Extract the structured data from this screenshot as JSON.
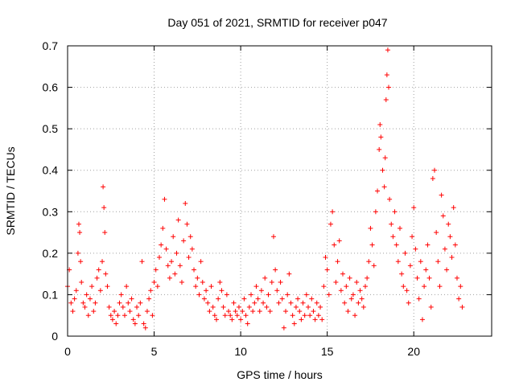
{
  "chart_data": {
    "type": "scatter",
    "title": "Day 051 of 2021, SRMTID for receiver p047",
    "xlabel": "GPS time / hours",
    "ylabel": "SRMTID / TECUs",
    "xlim": [
      0,
      24.5
    ],
    "ylim": [
      0,
      0.7
    ],
    "grid": true,
    "x_ticks": [
      0,
      5,
      10,
      15,
      20
    ],
    "x_tick_labels": [
      "0",
      "5",
      "10",
      "15",
      "20"
    ],
    "y_ticks": [
      0,
      0.1,
      0.2,
      0.3,
      0.4,
      0.5,
      0.6,
      0.7
    ],
    "y_tick_labels": [
      "0",
      "0.1",
      "0.2",
      "0.3",
      "0.4",
      "0.5",
      "0.6",
      "0.7"
    ],
    "marker": "+",
    "marker_color": "#ff0000",
    "series": [
      {
        "name": "SRMTID",
        "points": [
          [
            0.0,
            0.12
          ],
          [
            0.1,
            0.16
          ],
          [
            0.2,
            0.08
          ],
          [
            0.3,
            0.06
          ],
          [
            0.4,
            0.09
          ],
          [
            0.5,
            0.11
          ],
          [
            0.6,
            0.2
          ],
          [
            0.65,
            0.27
          ],
          [
            0.7,
            0.25
          ],
          [
            0.75,
            0.18
          ],
          [
            0.8,
            0.13
          ],
          [
            0.9,
            0.08
          ],
          [
            1.0,
            0.07
          ],
          [
            1.1,
            0.1
          ],
          [
            1.2,
            0.05
          ],
          [
            1.3,
            0.09
          ],
          [
            1.4,
            0.12
          ],
          [
            1.5,
            0.06
          ],
          [
            1.6,
            0.08
          ],
          [
            1.7,
            0.14
          ],
          [
            1.8,
            0.16
          ],
          [
            1.9,
            0.11
          ],
          [
            2.0,
            0.18
          ],
          [
            2.05,
            0.36
          ],
          [
            2.1,
            0.31
          ],
          [
            2.15,
            0.25
          ],
          [
            2.2,
            0.15
          ],
          [
            2.3,
            0.12
          ],
          [
            2.4,
            0.07
          ],
          [
            2.5,
            0.05
          ],
          [
            2.6,
            0.04
          ],
          [
            2.7,
            0.06
          ],
          [
            2.8,
            0.03
          ],
          [
            2.9,
            0.05
          ],
          [
            3.0,
            0.08
          ],
          [
            3.1,
            0.1
          ],
          [
            3.2,
            0.07
          ],
          [
            3.3,
            0.05
          ],
          [
            3.4,
            0.12
          ],
          [
            3.5,
            0.08
          ],
          [
            3.6,
            0.06
          ],
          [
            3.7,
            0.09
          ],
          [
            3.8,
            0.04
          ],
          [
            3.9,
            0.03
          ],
          [
            4.0,
            0.07
          ],
          [
            4.1,
            0.05
          ],
          [
            4.2,
            0.08
          ],
          [
            4.3,
            0.18
          ],
          [
            4.4,
            0.03
          ],
          [
            4.5,
            0.02
          ],
          [
            4.6,
            0.06
          ],
          [
            4.7,
            0.09
          ],
          [
            4.8,
            0.11
          ],
          [
            4.9,
            0.05
          ],
          [
            5.0,
            0.13
          ],
          [
            5.1,
            0.16
          ],
          [
            5.2,
            0.12
          ],
          [
            5.3,
            0.19
          ],
          [
            5.4,
            0.22
          ],
          [
            5.5,
            0.26
          ],
          [
            5.6,
            0.33
          ],
          [
            5.7,
            0.21
          ],
          [
            5.8,
            0.17
          ],
          [
            5.9,
            0.14
          ],
          [
            6.0,
            0.18
          ],
          [
            6.1,
            0.24
          ],
          [
            6.2,
            0.15
          ],
          [
            6.3,
            0.2
          ],
          [
            6.4,
            0.28
          ],
          [
            6.5,
            0.17
          ],
          [
            6.6,
            0.13
          ],
          [
            6.7,
            0.23
          ],
          [
            6.8,
            0.32
          ],
          [
            6.9,
            0.27
          ],
          [
            7.0,
            0.19
          ],
          [
            7.1,
            0.24
          ],
          [
            7.2,
            0.21
          ],
          [
            7.3,
            0.16
          ],
          [
            7.4,
            0.12
          ],
          [
            7.5,
            0.14
          ],
          [
            7.6,
            0.1
          ],
          [
            7.7,
            0.18
          ],
          [
            7.8,
            0.13
          ],
          [
            7.9,
            0.09
          ],
          [
            8.0,
            0.11
          ],
          [
            8.1,
            0.08
          ],
          [
            8.2,
            0.06
          ],
          [
            8.3,
            0.12
          ],
          [
            8.4,
            0.07
          ],
          [
            8.5,
            0.05
          ],
          [
            8.6,
            0.04
          ],
          [
            8.7,
            0.09
          ],
          [
            8.8,
            0.13
          ],
          [
            8.9,
            0.11
          ],
          [
            9.0,
            0.07
          ],
          [
            9.1,
            0.05
          ],
          [
            9.2,
            0.1
          ],
          [
            9.3,
            0.06
          ],
          [
            9.4,
            0.05
          ],
          [
            9.5,
            0.04
          ],
          [
            9.6,
            0.08
          ],
          [
            9.7,
            0.06
          ],
          [
            9.8,
            0.05
          ],
          [
            9.9,
            0.07
          ],
          [
            10.0,
            0.04
          ],
          [
            10.1,
            0.06
          ],
          [
            10.2,
            0.09
          ],
          [
            10.3,
            0.05
          ],
          [
            10.4,
            0.03
          ],
          [
            10.5,
            0.07
          ],
          [
            10.6,
            0.1
          ],
          [
            10.7,
            0.06
          ],
          [
            10.8,
            0.08
          ],
          [
            10.9,
            0.12
          ],
          [
            11.0,
            0.09
          ],
          [
            11.1,
            0.06
          ],
          [
            11.2,
            0.11
          ],
          [
            11.3,
            0.08
          ],
          [
            11.4,
            0.14
          ],
          [
            11.5,
            0.07
          ],
          [
            11.6,
            0.1
          ],
          [
            11.7,
            0.06
          ],
          [
            11.8,
            0.13
          ],
          [
            11.9,
            0.24
          ],
          [
            12.0,
            0.16
          ],
          [
            12.1,
            0.11
          ],
          [
            12.2,
            0.08
          ],
          [
            12.3,
            0.13
          ],
          [
            12.4,
            0.09
          ],
          [
            12.5,
            0.02
          ],
          [
            12.6,
            0.06
          ],
          [
            12.7,
            0.1
          ],
          [
            12.8,
            0.15
          ],
          [
            12.9,
            0.08
          ],
          [
            13.0,
            0.05
          ],
          [
            13.1,
            0.03
          ],
          [
            13.2,
            0.07
          ],
          [
            13.3,
            0.09
          ],
          [
            13.4,
            0.06
          ],
          [
            13.5,
            0.04
          ],
          [
            13.6,
            0.08
          ],
          [
            13.7,
            0.05
          ],
          [
            13.8,
            0.1
          ],
          [
            13.9,
            0.07
          ],
          [
            14.0,
            0.05
          ],
          [
            14.1,
            0.09
          ],
          [
            14.2,
            0.06
          ],
          [
            14.3,
            0.04
          ],
          [
            14.4,
            0.08
          ],
          [
            14.5,
            0.05
          ],
          [
            14.6,
            0.07
          ],
          [
            14.7,
            0.04
          ],
          [
            14.8,
            0.12
          ],
          [
            14.9,
            0.19
          ],
          [
            15.0,
            0.16
          ],
          [
            15.1,
            0.1
          ],
          [
            15.2,
            0.27
          ],
          [
            15.3,
            0.3
          ],
          [
            15.4,
            0.22
          ],
          [
            15.5,
            0.13
          ],
          [
            15.6,
            0.18
          ],
          [
            15.7,
            0.23
          ],
          [
            15.8,
            0.11
          ],
          [
            15.9,
            0.15
          ],
          [
            16.0,
            0.08
          ],
          [
            16.1,
            0.12
          ],
          [
            16.2,
            0.06
          ],
          [
            16.3,
            0.14
          ],
          [
            16.4,
            0.09
          ],
          [
            16.5,
            0.1
          ],
          [
            16.6,
            0.05
          ],
          [
            16.7,
            0.13
          ],
          [
            16.8,
            0.08
          ],
          [
            16.9,
            0.11
          ],
          [
            17.0,
            0.09
          ],
          [
            17.1,
            0.07
          ],
          [
            17.2,
            0.12
          ],
          [
            17.3,
            0.14
          ],
          [
            17.4,
            0.18
          ],
          [
            17.5,
            0.26
          ],
          [
            17.6,
            0.22
          ],
          [
            17.7,
            0.17
          ],
          [
            17.8,
            0.3
          ],
          [
            17.9,
            0.35
          ],
          [
            18.0,
            0.45
          ],
          [
            18.05,
            0.51
          ],
          [
            18.1,
            0.48
          ],
          [
            18.2,
            0.4
          ],
          [
            18.3,
            0.36
          ],
          [
            18.35,
            0.43
          ],
          [
            18.4,
            0.57
          ],
          [
            18.45,
            0.63
          ],
          [
            18.5,
            0.69
          ],
          [
            18.55,
            0.6
          ],
          [
            18.6,
            0.33
          ],
          [
            18.7,
            0.27
          ],
          [
            18.8,
            0.24
          ],
          [
            18.9,
            0.3
          ],
          [
            19.0,
            0.22
          ],
          [
            19.1,
            0.18
          ],
          [
            19.2,
            0.26
          ],
          [
            19.3,
            0.15
          ],
          [
            19.4,
            0.12
          ],
          [
            19.5,
            0.2
          ],
          [
            19.6,
            0.11
          ],
          [
            19.7,
            0.08
          ],
          [
            19.8,
            0.17
          ],
          [
            19.9,
            0.24
          ],
          [
            20.0,
            0.31
          ],
          [
            20.1,
            0.21
          ],
          [
            20.2,
            0.14
          ],
          [
            20.3,
            0.09
          ],
          [
            20.4,
            0.18
          ],
          [
            20.5,
            0.04
          ],
          [
            20.6,
            0.12
          ],
          [
            20.7,
            0.16
          ],
          [
            20.8,
            0.22
          ],
          [
            20.9,
            0.14
          ],
          [
            21.0,
            0.07
          ],
          [
            21.1,
            0.38
          ],
          [
            21.2,
            0.4
          ],
          [
            21.3,
            0.25
          ],
          [
            21.4,
            0.18
          ],
          [
            21.5,
            0.12
          ],
          [
            21.6,
            0.34
          ],
          [
            21.7,
            0.29
          ],
          [
            21.8,
            0.21
          ],
          [
            21.9,
            0.16
          ],
          [
            22.0,
            0.27
          ],
          [
            22.1,
            0.24
          ],
          [
            22.2,
            0.19
          ],
          [
            22.3,
            0.31
          ],
          [
            22.4,
            0.22
          ],
          [
            22.5,
            0.14
          ],
          [
            22.6,
            0.09
          ],
          [
            22.7,
            0.12
          ],
          [
            22.8,
            0.07
          ]
        ]
      }
    ]
  }
}
